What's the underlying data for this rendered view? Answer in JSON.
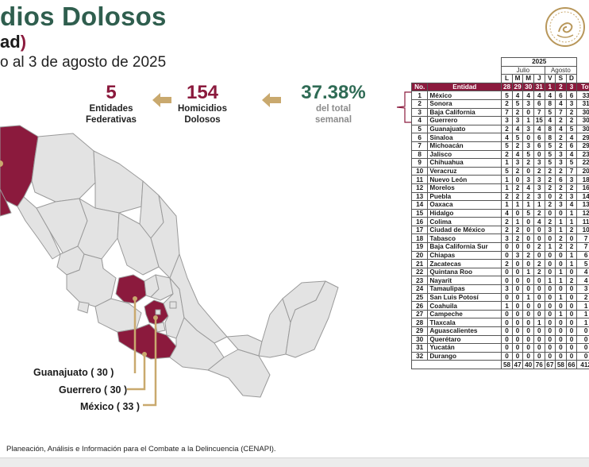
{
  "header": {
    "title": "dios Dolosos",
    "subtitle_text": "ad",
    "subtitle_paren": ")",
    "period": "o al 3 de agosto de 2025"
  },
  "stats": {
    "entities": {
      "value": "5",
      "label_line1": "Entidades",
      "label_line2": "Federativas"
    },
    "homicides": {
      "value": "154",
      "label_line1": "Homicidios",
      "label_line2": "Dolosos"
    },
    "percent": {
      "value": "37.38%",
      "label_line1": "del total",
      "label_line2": "semanal"
    }
  },
  "map_labels": {
    "guanajuato": "Guanajuato ( 30 )",
    "guerrero": "Guerrero ( 30 )",
    "mexico": "México ( 33 )"
  },
  "colors": {
    "highlight": "#8b1a3d",
    "green": "#2f5e4e",
    "arrow": "#c9a96e",
    "state_fill": "#e3e3e3"
  },
  "icons": {
    "seal": "mexico-seal-icon",
    "arrow": "arrow-left-icon"
  },
  "table": {
    "year": "2025",
    "month_july": "Julio",
    "month_august": "Agosto",
    "col_no": "No.",
    "col_entity": "Entidad",
    "col_total": "Tot",
    "days": [
      "28",
      "29",
      "30",
      "31",
      "1",
      "2",
      "3"
    ],
    "weekdays": [
      "L",
      "M",
      "M",
      "J",
      "V",
      "S",
      "D"
    ],
    "rows": [
      {
        "no": "1",
        "entity": "México",
        "vals": [
          "5",
          "4",
          "4",
          "4",
          "4",
          "6",
          "6"
        ],
        "total": "33"
      },
      {
        "no": "2",
        "entity": "Sonora",
        "vals": [
          "2",
          "5",
          "3",
          "6",
          "8",
          "4",
          "3"
        ],
        "total": "31"
      },
      {
        "no": "3",
        "entity": "Baja California",
        "vals": [
          "7",
          "2",
          "0",
          "7",
          "5",
          "7",
          "2"
        ],
        "total": "30"
      },
      {
        "no": "4",
        "entity": "Guerrero",
        "vals": [
          "3",
          "3",
          "1",
          "15",
          "4",
          "2",
          "2"
        ],
        "total": "30"
      },
      {
        "no": "5",
        "entity": "Guanajuato",
        "vals": [
          "2",
          "4",
          "3",
          "4",
          "8",
          "4",
          "5"
        ],
        "total": "30"
      },
      {
        "no": "6",
        "entity": "Sinaloa",
        "vals": [
          "4",
          "5",
          "0",
          "6",
          "8",
          "2",
          "4"
        ],
        "total": "29"
      },
      {
        "no": "7",
        "entity": "Michoacán",
        "vals": [
          "5",
          "2",
          "3",
          "6",
          "5",
          "2",
          "6"
        ],
        "total": "29"
      },
      {
        "no": "8",
        "entity": "Jalisco",
        "vals": [
          "2",
          "4",
          "5",
          "0",
          "5",
          "3",
          "4"
        ],
        "total": "23"
      },
      {
        "no": "9",
        "entity": "Chihuahua",
        "vals": [
          "1",
          "3",
          "2",
          "3",
          "5",
          "3",
          "5"
        ],
        "total": "22"
      },
      {
        "no": "10",
        "entity": "Veracruz",
        "vals": [
          "5",
          "2",
          "0",
          "2",
          "2",
          "2",
          "7"
        ],
        "total": "20"
      },
      {
        "no": "11",
        "entity": "Nuevo León",
        "vals": [
          "1",
          "0",
          "3",
          "3",
          "2",
          "6",
          "3"
        ],
        "total": "18"
      },
      {
        "no": "12",
        "entity": "Morelos",
        "vals": [
          "1",
          "2",
          "4",
          "3",
          "2",
          "2",
          "2"
        ],
        "total": "16"
      },
      {
        "no": "13",
        "entity": "Puebla",
        "vals": [
          "2",
          "2",
          "2",
          "3",
          "0",
          "2",
          "3"
        ],
        "total": "14"
      },
      {
        "no": "14",
        "entity": "Oaxaca",
        "vals": [
          "1",
          "1",
          "1",
          "1",
          "2",
          "3",
          "4"
        ],
        "total": "13"
      },
      {
        "no": "15",
        "entity": "Hidalgo",
        "vals": [
          "4",
          "0",
          "5",
          "2",
          "0",
          "0",
          "1"
        ],
        "total": "12"
      },
      {
        "no": "16",
        "entity": "Colima",
        "vals": [
          "2",
          "1",
          "0",
          "4",
          "2",
          "1",
          "1"
        ],
        "total": "11"
      },
      {
        "no": "17",
        "entity": "Ciudad de México",
        "vals": [
          "2",
          "2",
          "0",
          "0",
          "3",
          "1",
          "2"
        ],
        "total": "10"
      },
      {
        "no": "18",
        "entity": "Tabasco",
        "vals": [
          "3",
          "2",
          "0",
          "0",
          "0",
          "2",
          "0"
        ],
        "total": "7"
      },
      {
        "no": "19",
        "entity": "Baja California Sur",
        "vals": [
          "0",
          "0",
          "0",
          "2",
          "1",
          "2",
          "2"
        ],
        "total": "7"
      },
      {
        "no": "20",
        "entity": "Chiapas",
        "vals": [
          "0",
          "3",
          "2",
          "0",
          "0",
          "0",
          "1"
        ],
        "total": "6"
      },
      {
        "no": "21",
        "entity": "Zacatecas",
        "vals": [
          "2",
          "0",
          "0",
          "2",
          "0",
          "0",
          "1"
        ],
        "total": "5"
      },
      {
        "no": "22",
        "entity": "Quintana Roo",
        "vals": [
          "0",
          "0",
          "1",
          "2",
          "0",
          "1",
          "0"
        ],
        "total": "4"
      },
      {
        "no": "23",
        "entity": "Nayarit",
        "vals": [
          "0",
          "0",
          "0",
          "0",
          "1",
          "1",
          "2"
        ],
        "total": "4"
      },
      {
        "no": "24",
        "entity": "Tamaulipas",
        "vals": [
          "3",
          "0",
          "0",
          "0",
          "0",
          "0",
          "0"
        ],
        "total": "3"
      },
      {
        "no": "25",
        "entity": "San Luis Potosí",
        "vals": [
          "0",
          "0",
          "1",
          "0",
          "0",
          "1",
          "0"
        ],
        "total": "2"
      },
      {
        "no": "26",
        "entity": "Coahuila",
        "vals": [
          "1",
          "0",
          "0",
          "0",
          "0",
          "0",
          "0"
        ],
        "total": "1"
      },
      {
        "no": "27",
        "entity": "Campeche",
        "vals": [
          "0",
          "0",
          "0",
          "0",
          "0",
          "1",
          "0"
        ],
        "total": "1"
      },
      {
        "no": "28",
        "entity": "Tlaxcala",
        "vals": [
          "0",
          "0",
          "0",
          "1",
          "0",
          "0",
          "0"
        ],
        "total": "1"
      },
      {
        "no": "29",
        "entity": "Aguascalientes",
        "vals": [
          "0",
          "0",
          "0",
          "0",
          "0",
          "0",
          "0"
        ],
        "total": "0"
      },
      {
        "no": "30",
        "entity": "Querétaro",
        "vals": [
          "0",
          "0",
          "0",
          "0",
          "0",
          "0",
          "0"
        ],
        "total": "0"
      },
      {
        "no": "31",
        "entity": "Yucatán",
        "vals": [
          "0",
          "0",
          "0",
          "0",
          "0",
          "0",
          "0"
        ],
        "total": "0"
      },
      {
        "no": "32",
        "entity": "Durango",
        "vals": [
          "0",
          "0",
          "0",
          "0",
          "0",
          "0",
          "0"
        ],
        "total": "0"
      }
    ],
    "totals": [
      "58",
      "47",
      "40",
      "76",
      "67",
      "58",
      "66"
    ],
    "grand_total": "412"
  },
  "footnote": " Planeación, Análisis e Información para el Combate a la Delincuencia (CENAPI)."
}
